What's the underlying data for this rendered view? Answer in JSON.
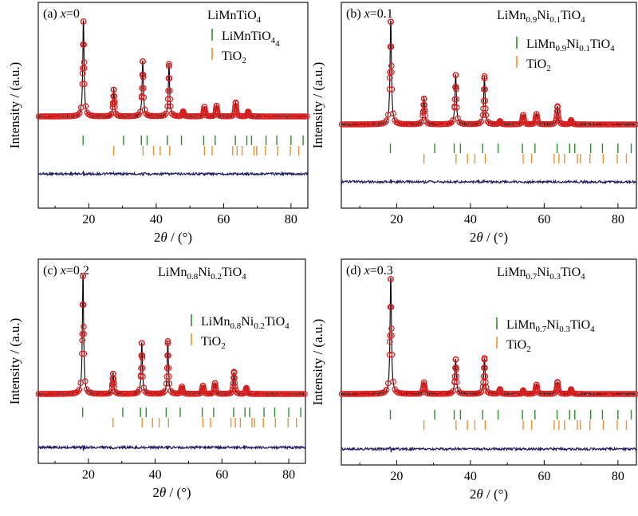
{
  "colors": {
    "observed": "#d62020",
    "calculated": "#000000",
    "difference": "#1a1a5e",
    "ticks_main": "#2e8b2e",
    "ticks_tio2": "#e8922e"
  },
  "chart_data": [
    {
      "type": "scatter",
      "panel_label": "(a) ",
      "x_symbol": "x",
      "x_value": "=0",
      "title": {
        "pre": "LiMnTiO",
        "sub1": "4",
        "mid": "",
        "sub2": "",
        "post": ""
      },
      "legend": {
        "main": {
          "pre": "LiMnTiO",
          "sub1": "4",
          "mid": "",
          "sub2": "",
          "post": ""
        },
        "tio2": {
          "pre": "TiO",
          "sub": "2"
        }
      },
      "ylabel": "Intensity / (a.u.)",
      "xlabel": {
        "num": "2",
        "sym": "θ",
        "rest": " / (°)"
      },
      "xlim": [
        5,
        85
      ],
      "xticks": [
        20,
        40,
        60,
        80
      ],
      "peaks": [
        {
          "pos": 18.4,
          "height": 1.0
        },
        {
          "pos": 27.4,
          "height": 0.28
        },
        {
          "pos": 36.0,
          "height": 0.58
        },
        {
          "pos": 43.8,
          "height": 0.53
        },
        {
          "pos": 48.0,
          "height": 0.05
        },
        {
          "pos": 54.3,
          "height": 0.1
        },
        {
          "pos": 57.9,
          "height": 0.11
        },
        {
          "pos": 63.6,
          "height": 0.14
        },
        {
          "pos": 67.3,
          "height": 0.05
        }
      ],
      "ticks_main": [
        18.3,
        30.3,
        35.6,
        37.3,
        43.3,
        47.5,
        54.1,
        57.5,
        63.5,
        66.9,
        68.3,
        72.6,
        75.8,
        80.0,
        83.6
      ],
      "ticks_tio2": [
        27.4,
        36.1,
        39.2,
        41.2,
        44.0,
        54.3,
        56.6,
        62.7,
        64.0,
        65.5,
        69.0,
        69.8,
        72.4,
        76.0,
        79.8,
        82.3
      ]
    },
    {
      "type": "scatter",
      "panel_label": "(b) ",
      "x_symbol": "x",
      "x_value": "=0.1",
      "title": {
        "pre": "LiMn",
        "sub1": "0.9",
        "mid": "Ni",
        "sub2": "0.1",
        "post": "TiO"
      },
      "legend": {
        "main": {
          "pre": "LiMn",
          "sub1": "0.9",
          "mid": "Ni",
          "sub2": "0.1",
          "post": "TiO"
        },
        "tio2": {
          "pre": "TiO",
          "sub": "2"
        }
      },
      "ylabel": "Intensity / (a.u.)",
      "xlabel": {
        "num": "2",
        "sym": "θ",
        "rest": " / (°)"
      },
      "xlim": [
        5,
        85
      ],
      "xticks": [
        20,
        40,
        60,
        80
      ],
      "peaks": [
        {
          "pos": 18.4,
          "height": 1.0
        },
        {
          "pos": 27.4,
          "height": 0.25
        },
        {
          "pos": 36.0,
          "height": 0.48
        },
        {
          "pos": 43.8,
          "height": 0.45
        },
        {
          "pos": 48.0,
          "height": 0.03
        },
        {
          "pos": 54.3,
          "height": 0.09
        },
        {
          "pos": 57.9,
          "height": 0.1
        },
        {
          "pos": 63.6,
          "height": 0.17
        },
        {
          "pos": 67.3,
          "height": 0.04
        }
      ],
      "ticks_main": [
        18.3,
        30.3,
        35.6,
        37.3,
        43.3,
        47.5,
        54.1,
        57.5,
        63.5,
        66.9,
        68.3,
        72.6,
        75.8,
        80.0,
        83.6
      ],
      "ticks_tio2": [
        27.4,
        36.1,
        39.2,
        41.2,
        44.0,
        54.3,
        56.6,
        62.7,
        64.0,
        65.5,
        69.0,
        69.8,
        72.4,
        76.0,
        79.8,
        82.3
      ]
    },
    {
      "type": "scatter",
      "panel_label": "(c) ",
      "x_symbol": "x",
      "x_value": "=0.2",
      "title": {
        "pre": "LiMn",
        "sub1": "0.8",
        "mid": "Ni",
        "sub2": "0.2",
        "post": "TiO"
      },
      "legend": {
        "main": {
          "pre": "LiMn",
          "sub1": "0.8",
          "mid": "Ni",
          "sub2": "0.2",
          "post": "TiO"
        },
        "tio2": {
          "pre": "TiO",
          "sub": "2"
        }
      },
      "ylabel": "Intensity / (a.u.)",
      "xlabel": {
        "num": "2",
        "sym": "θ",
        "rest": " / (°)"
      },
      "xlim": [
        5,
        85
      ],
      "xticks": [
        20,
        40,
        60,
        80
      ],
      "peaks": [
        {
          "pos": 18.4,
          "height": 1.0
        },
        {
          "pos": 27.4,
          "height": 0.17
        },
        {
          "pos": 36.0,
          "height": 0.43
        },
        {
          "pos": 43.8,
          "height": 0.43
        },
        {
          "pos": 48.0,
          "height": 0.06
        },
        {
          "pos": 54.3,
          "height": 0.07
        },
        {
          "pos": 57.9,
          "height": 0.09
        },
        {
          "pos": 63.6,
          "height": 0.18
        },
        {
          "pos": 67.3,
          "height": 0.05
        }
      ],
      "ticks_main": [
        18.3,
        30.3,
        35.6,
        37.3,
        43.3,
        47.5,
        54.1,
        57.5,
        63.5,
        66.9,
        68.3,
        72.6,
        75.8,
        80.0,
        83.6
      ],
      "ticks_tio2": [
        27.4,
        36.1,
        39.2,
        41.2,
        44.0,
        54.3,
        56.6,
        62.7,
        64.0,
        65.5,
        69.0,
        69.8,
        72.4,
        76.0,
        79.8,
        82.3
      ]
    },
    {
      "type": "scatter",
      "panel_label": "(d) ",
      "x_symbol": "x",
      "x_value": "=0.3",
      "title": {
        "pre": "LiMn",
        "sub1": "0.7",
        "mid": "Ni",
        "sub2": "0.3",
        "post": "TiO"
      },
      "legend": {
        "main": {
          "pre": "LiMn",
          "sub1": "0.7",
          "mid": "Ni",
          "sub2": "0.3",
          "post": "TiO"
        },
        "tio2": {
          "pre": "TiO",
          "sub": "2"
        }
      },
      "ylabel": "Intensity / (a.u.)",
      "xlabel": {
        "num": "2",
        "sym": "θ",
        "rest": " / (°)"
      },
      "xlim": [
        5,
        85
      ],
      "xticks": [
        20,
        40,
        60,
        80
      ],
      "peaks": [
        {
          "pos": 18.4,
          "height": 1.0
        },
        {
          "pos": 27.4,
          "height": 0.1
        },
        {
          "pos": 36.0,
          "height": 0.3
        },
        {
          "pos": 43.8,
          "height": 0.3
        },
        {
          "pos": 48.0,
          "height": 0.04
        },
        {
          "pos": 54.3,
          "height": 0.03
        },
        {
          "pos": 57.9,
          "height": 0.08
        },
        {
          "pos": 63.6,
          "height": 0.1
        },
        {
          "pos": 67.3,
          "height": 0.04
        }
      ],
      "ticks_main": [
        18.3,
        30.3,
        35.6,
        37.3,
        43.3,
        47.5,
        54.1,
        57.5,
        63.5,
        66.9,
        68.3,
        72.6,
        75.8,
        80.0,
        83.6
      ],
      "ticks_tio2": [
        27.4,
        36.1,
        39.2,
        41.2,
        44.0,
        54.3,
        56.6,
        62.7,
        64.0,
        65.5,
        69.0,
        69.8,
        72.4,
        76.0,
        79.8,
        82.3
      ]
    }
  ]
}
